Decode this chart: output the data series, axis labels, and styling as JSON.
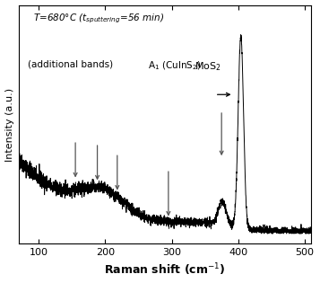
{
  "xlabel": "Raman shift (cm$^{-1}$)",
  "ylabel": "Intensity (a.u.)",
  "xmin": 70,
  "xmax": 510,
  "annotation_additional_bands": "(additional bands)",
  "annotation_A1": "A$_1$ (CuInS$_2$)",
  "annotation_MoS2": "MoS$_2$",
  "background_color": "#ffffff",
  "line_color": "#000000",
  "seed": 42
}
